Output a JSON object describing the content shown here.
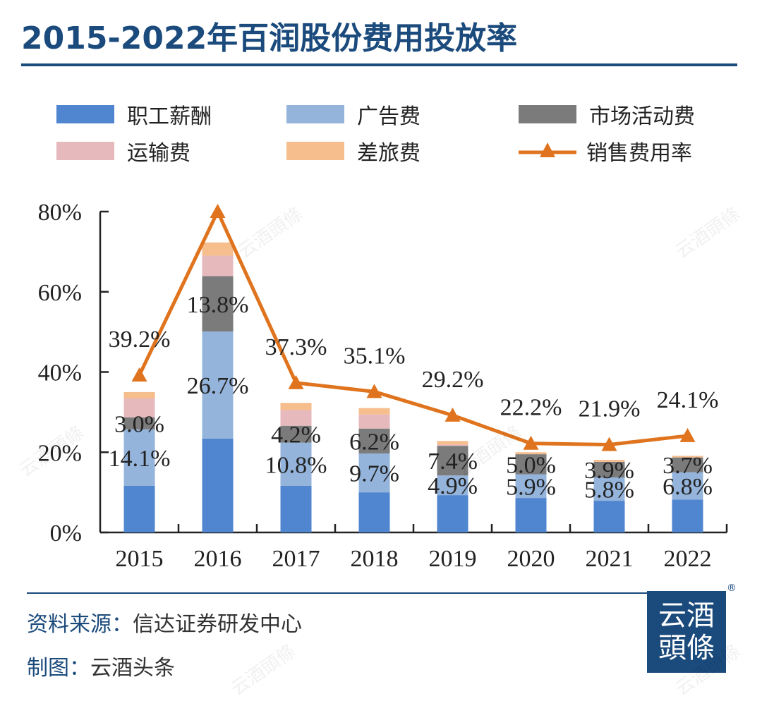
{
  "title": "2015-2022年百润股份费用投放率",
  "watermark": "云酒頭條",
  "legend": [
    {
      "label": "职工薪酬",
      "color": "#4f86cf",
      "kind": "bar"
    },
    {
      "label": "广告费",
      "color": "#94b4dc",
      "kind": "bar"
    },
    {
      "label": "市场活动费",
      "color": "#7b7b7b",
      "kind": "bar"
    },
    {
      "label": "运输费",
      "color": "#e6b9bd",
      "kind": "bar"
    },
    {
      "label": "差旅费",
      "color": "#f6bd8d",
      "kind": "bar"
    },
    {
      "label": "销售费用率",
      "color": "#e0741e",
      "kind": "line"
    }
  ],
  "chart_data": {
    "type": "bar",
    "stacked": true,
    "title": "2015-2022年百润股份费用投放率",
    "xlabel": "",
    "ylabel": "",
    "ylim": [
      0,
      80
    ],
    "yticks": [
      "0%",
      "20%",
      "40%",
      "60%",
      "80%"
    ],
    "ytick_values": [
      0,
      20,
      40,
      60,
      80
    ],
    "categories": [
      "2015",
      "2016",
      "2017",
      "2018",
      "2019",
      "2020",
      "2021",
      "2022"
    ],
    "series": [
      {
        "name": "职工薪酬",
        "color": "#4f86cf",
        "values": [
          11.6,
          23.4,
          11.6,
          10.0,
          9.3,
          8.6,
          7.9,
          8.2
        ]
      },
      {
        "name": "广告费",
        "color": "#94b4dc",
        "values": [
          14.1,
          26.7,
          10.8,
          9.7,
          4.9,
          5.9,
          5.8,
          6.8
        ],
        "labels": [
          "14.1%",
          "26.7%",
          "10.8%",
          "9.7%",
          "4.9%",
          "5.9%",
          "5.8%",
          "6.8%"
        ]
      },
      {
        "name": "市场活动费",
        "color": "#7b7b7b",
        "values": [
          3.0,
          13.8,
          4.2,
          6.2,
          7.4,
          5.0,
          3.9,
          3.7
        ],
        "labels": [
          "3.0%",
          "13.8%",
          "4.2%",
          "6.2%",
          "7.4%",
          "5.0%",
          "3.9%",
          "3.7%"
        ]
      },
      {
        "name": "运输费",
        "color": "#e6b9bd",
        "values": [
          4.7,
          5.1,
          3.9,
          3.5,
          0.3,
          0.0,
          0.0,
          0.0
        ]
      },
      {
        "name": "差旅费",
        "color": "#f6bd8d",
        "values": [
          1.6,
          3.3,
          1.8,
          1.6,
          0.9,
          0.5,
          0.5,
          0.4
        ]
      }
    ],
    "line": {
      "name": "销售费用率",
      "color": "#e0741e",
      "values": [
        39.2,
        80.0,
        37.3,
        35.1,
        29.2,
        22.2,
        21.9,
        24.1
      ],
      "labels": [
        "39.2%",
        "",
        "37.3%",
        "35.1%",
        "29.2%",
        "22.2%",
        "21.9%",
        "24.1%"
      ]
    },
    "grid": false,
    "legend_position": "top"
  },
  "footer": {
    "source_key": "资料来源：",
    "source_value": "信达证券研发中心",
    "maker_key": "制图：",
    "maker_value": "云酒头条",
    "logo_line1": "云酒",
    "logo_line2": "頭條",
    "registered": "®"
  }
}
